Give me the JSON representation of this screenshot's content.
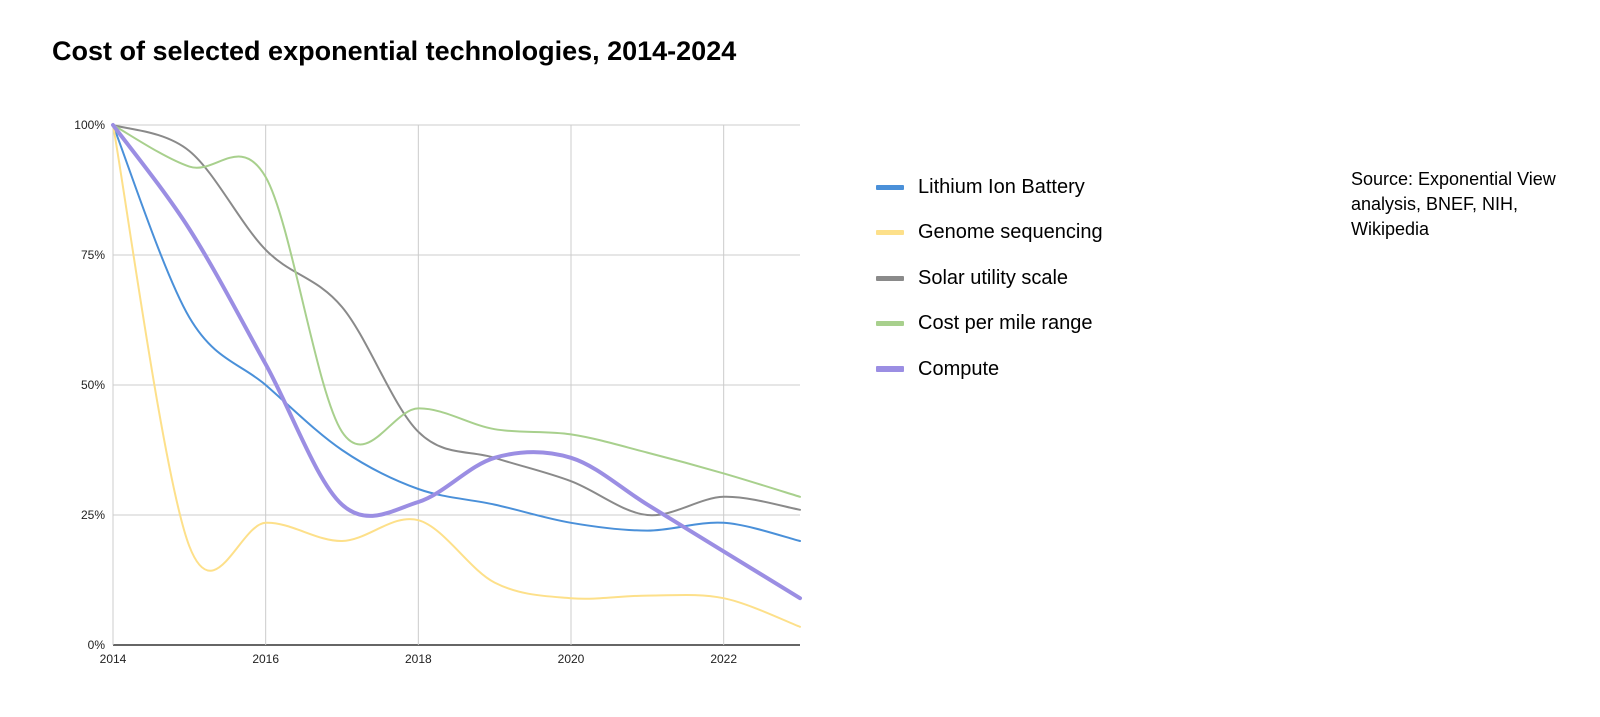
{
  "chart_data": {
    "type": "line",
    "title": "Cost of selected exponential technologies, 2014-2024",
    "xlabel": "",
    "ylabel": "",
    "x": [
      2014,
      2015,
      2016,
      2017,
      2018,
      2019,
      2020,
      2021,
      2022,
      2023
    ],
    "xlim": [
      2014,
      2023
    ],
    "ylim": [
      0,
      100
    ],
    "x_ticks": [
      "2014",
      "2016",
      "2018",
      "2020",
      "2022"
    ],
    "x_tick_values": [
      2014,
      2016,
      2018,
      2020,
      2022
    ],
    "y_ticks": [
      "0%",
      "25%",
      "50%",
      "75%",
      "100%"
    ],
    "y_tick_values": [
      0,
      25,
      50,
      75,
      100
    ],
    "grid": true,
    "legend_position": "right",
    "series": [
      {
        "name": "Lithium Ion Battery",
        "color": "#4a90d9",
        "values": [
          100,
          63,
          50,
          37.5,
          30,
          27,
          23.5,
          22,
          23.5,
          20
        ]
      },
      {
        "name": "Genome sequencing",
        "color": "#fde08a",
        "values": [
          100,
          19,
          23.5,
          20,
          24,
          12,
          9,
          9.5,
          9,
          3.5
        ]
      },
      {
        "name": "Solar utility scale",
        "color": "#8a8a8a",
        "values": [
          100,
          95,
          76,
          65,
          41,
          36,
          31.5,
          25,
          28.5,
          26
        ]
      },
      {
        "name": "Cost per mile range",
        "color": "#a8d08d",
        "values": [
          100,
          92,
          90,
          41,
          45.5,
          41.5,
          40.5,
          37,
          33,
          28.5
        ]
      },
      {
        "name": "Compute",
        "color": "#9b8ee3",
        "values": [
          100,
          80,
          54,
          27,
          27.5,
          36,
          36,
          27,
          18,
          9
        ]
      }
    ],
    "annotation": "Source: Exponential View analysis, BNEF, NIH, Wikipedia"
  }
}
